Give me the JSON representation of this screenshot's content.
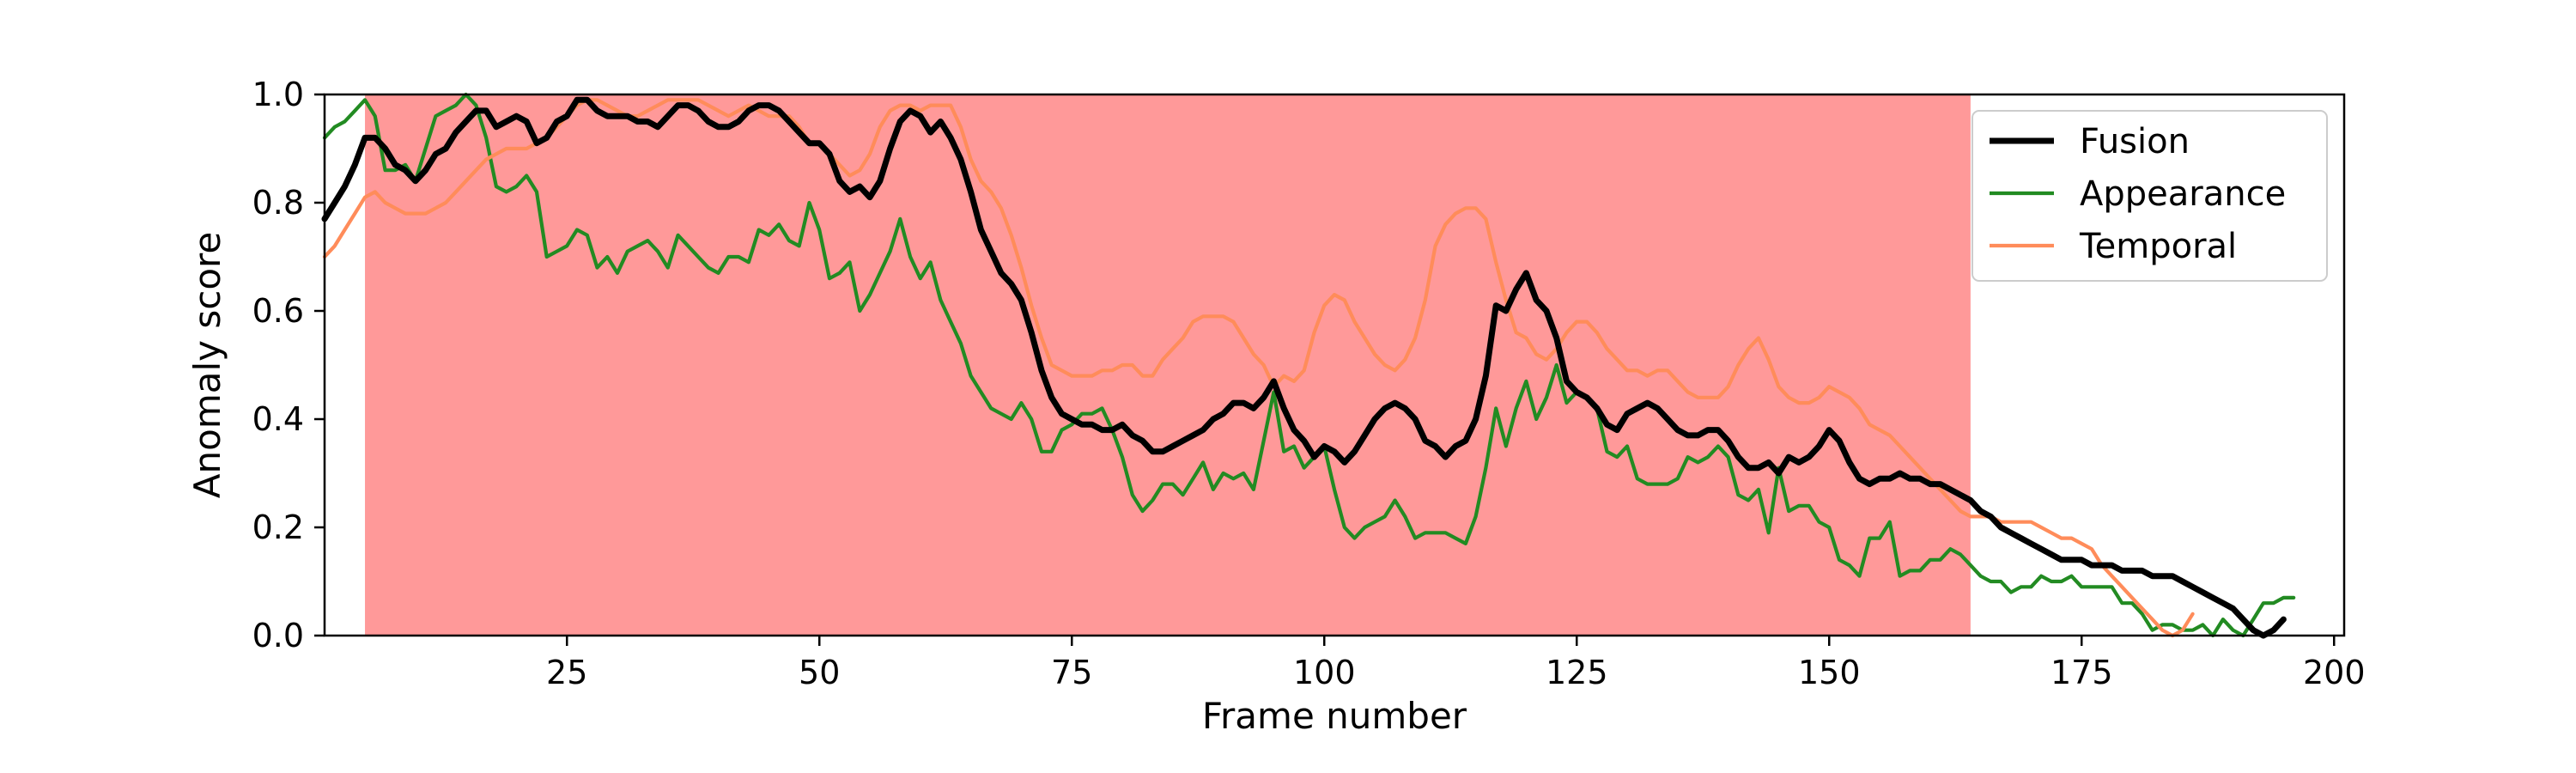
{
  "chart_data": {
    "type": "line",
    "title": "",
    "xlabel": "Frame number",
    "ylabel": "Anomaly score",
    "xlim": [
      1,
      201
    ],
    "ylim": [
      0.0,
      1.0
    ],
    "xticks": [
      25,
      50,
      75,
      100,
      125,
      150,
      175,
      200
    ],
    "yticks": [
      0.0,
      0.2,
      0.4,
      0.6,
      0.8,
      1.0
    ],
    "xtick_labels": [
      "25",
      "50",
      "75",
      "100",
      "125",
      "150",
      "175",
      "200"
    ],
    "ytick_labels": [
      "0.0",
      "0.2",
      "0.4",
      "0.6",
      "0.8",
      "1.0"
    ],
    "grid": false,
    "legend_position": "top-right",
    "shaded_region": {
      "x_start": 5,
      "x_end": 164,
      "color": "#ff9999"
    },
    "x_start": 1,
    "series": [
      {
        "name": "Fusion",
        "color": "#000000",
        "values": [
          0.77,
          0.8,
          0.83,
          0.87,
          0.92,
          0.92,
          0.9,
          0.87,
          0.86,
          0.84,
          0.86,
          0.89,
          0.9,
          0.93,
          0.95,
          0.97,
          0.97,
          0.94,
          0.95,
          0.96,
          0.95,
          0.91,
          0.92,
          0.95,
          0.96,
          0.99,
          0.99,
          0.97,
          0.96,
          0.96,
          0.96,
          0.95,
          0.95,
          0.94,
          0.96,
          0.98,
          0.98,
          0.97,
          0.95,
          0.94,
          0.94,
          0.95,
          0.97,
          0.98,
          0.98,
          0.97,
          0.95,
          0.93,
          0.91,
          0.91,
          0.89,
          0.84,
          0.82,
          0.83,
          0.81,
          0.84,
          0.9,
          0.95,
          0.97,
          0.96,
          0.93,
          0.95,
          0.92,
          0.88,
          0.82,
          0.75,
          0.71,
          0.67,
          0.65,
          0.62,
          0.56,
          0.49,
          0.44,
          0.41,
          0.4,
          0.39,
          0.39,
          0.38,
          0.38,
          0.39,
          0.37,
          0.36,
          0.34,
          0.34,
          0.35,
          0.36,
          0.37,
          0.38,
          0.4,
          0.41,
          0.43,
          0.43,
          0.42,
          0.44,
          0.47,
          0.42,
          0.38,
          0.36,
          0.33,
          0.35,
          0.34,
          0.32,
          0.34,
          0.37,
          0.4,
          0.42,
          0.43,
          0.42,
          0.4,
          0.36,
          0.35,
          0.33,
          0.35,
          0.36,
          0.4,
          0.48,
          0.61,
          0.6,
          0.64,
          0.67,
          0.62,
          0.6,
          0.55,
          0.47,
          0.45,
          0.44,
          0.42,
          0.39,
          0.38,
          0.41,
          0.42,
          0.43,
          0.42,
          0.4,
          0.38,
          0.37,
          0.37,
          0.38,
          0.38,
          0.36,
          0.33,
          0.31,
          0.31,
          0.32,
          0.3,
          0.33,
          0.32,
          0.33,
          0.35,
          0.38,
          0.36,
          0.32,
          0.29,
          0.28,
          0.29,
          0.29,
          0.3,
          0.29,
          0.29,
          0.28,
          0.28,
          0.27,
          0.26,
          0.25,
          0.23,
          0.22,
          0.2,
          0.19,
          0.18,
          0.17,
          0.16,
          0.15,
          0.14,
          0.14,
          0.14,
          0.13,
          0.13,
          0.13,
          0.12,
          0.12,
          0.12,
          0.11,
          0.11,
          0.11,
          0.1,
          0.09,
          0.08,
          0.07,
          0.06,
          0.05,
          0.03,
          0.01,
          0.0,
          0.01,
          0.03
        ]
      },
      {
        "name": "Appearance",
        "color": "#228b22",
        "values": [
          0.92,
          0.94,
          0.95,
          0.97,
          0.99,
          0.96,
          0.86,
          0.86,
          0.87,
          0.84,
          0.9,
          0.96,
          0.97,
          0.98,
          1.0,
          0.98,
          0.92,
          0.83,
          0.82,
          0.83,
          0.85,
          0.82,
          0.7,
          0.71,
          0.72,
          0.75,
          0.74,
          0.68,
          0.7,
          0.67,
          0.71,
          0.72,
          0.73,
          0.71,
          0.68,
          0.74,
          0.72,
          0.7,
          0.68,
          0.67,
          0.7,
          0.7,
          0.69,
          0.75,
          0.74,
          0.76,
          0.73,
          0.72,
          0.8,
          0.75,
          0.66,
          0.67,
          0.69,
          0.6,
          0.63,
          0.67,
          0.71,
          0.77,
          0.7,
          0.66,
          0.69,
          0.62,
          0.58,
          0.54,
          0.48,
          0.45,
          0.42,
          0.41,
          0.4,
          0.43,
          0.4,
          0.34,
          0.34,
          0.38,
          0.39,
          0.41,
          0.41,
          0.42,
          0.38,
          0.33,
          0.26,
          0.23,
          0.25,
          0.28,
          0.28,
          0.26,
          0.29,
          0.32,
          0.27,
          0.3,
          0.29,
          0.3,
          0.27,
          0.36,
          0.45,
          0.34,
          0.35,
          0.31,
          0.33,
          0.35,
          0.27,
          0.2,
          0.18,
          0.2,
          0.21,
          0.22,
          0.25,
          0.22,
          0.18,
          0.19,
          0.19,
          0.19,
          0.18,
          0.17,
          0.22,
          0.31,
          0.42,
          0.35,
          0.42,
          0.47,
          0.4,
          0.44,
          0.5,
          0.43,
          0.45,
          0.44,
          0.42,
          0.34,
          0.33,
          0.35,
          0.29,
          0.28,
          0.28,
          0.28,
          0.29,
          0.33,
          0.32,
          0.33,
          0.35,
          0.33,
          0.26,
          0.25,
          0.27,
          0.19,
          0.31,
          0.23,
          0.24,
          0.24,
          0.21,
          0.2,
          0.14,
          0.13,
          0.11,
          0.18,
          0.18,
          0.21,
          0.11,
          0.12,
          0.12,
          0.14,
          0.14,
          0.16,
          0.15,
          0.13,
          0.11,
          0.1,
          0.1,
          0.08,
          0.09,
          0.09,
          0.11,
          0.1,
          0.1,
          0.11,
          0.09,
          0.09,
          0.09,
          0.09,
          0.06,
          0.06,
          0.04,
          0.01,
          0.02,
          0.02,
          0.01,
          0.01,
          0.02,
          0.0,
          0.03,
          0.01,
          0.0,
          0.03,
          0.06,
          0.06,
          0.07,
          0.07
        ]
      },
      {
        "name": "Temporal",
        "color": "#ff8c5a",
        "values": [
          0.7,
          0.72,
          0.75,
          0.78,
          0.81,
          0.82,
          0.8,
          0.79,
          0.78,
          0.78,
          0.78,
          0.79,
          0.8,
          0.82,
          0.84,
          0.86,
          0.88,
          0.89,
          0.9,
          0.9,
          0.9,
          0.91,
          0.92,
          0.94,
          0.96,
          0.98,
          0.99,
          0.99,
          0.98,
          0.97,
          0.96,
          0.96,
          0.97,
          0.98,
          0.99,
          0.99,
          0.99,
          0.99,
          0.98,
          0.97,
          0.96,
          0.97,
          0.98,
          0.97,
          0.96,
          0.96,
          0.96,
          0.94,
          0.91,
          0.91,
          0.89,
          0.87,
          0.85,
          0.86,
          0.89,
          0.94,
          0.97,
          0.98,
          0.98,
          0.97,
          0.98,
          0.98,
          0.98,
          0.94,
          0.88,
          0.84,
          0.82,
          0.79,
          0.74,
          0.68,
          0.61,
          0.55,
          0.5,
          0.49,
          0.48,
          0.48,
          0.48,
          0.49,
          0.49,
          0.5,
          0.5,
          0.48,
          0.48,
          0.51,
          0.53,
          0.55,
          0.58,
          0.59,
          0.59,
          0.59,
          0.58,
          0.55,
          0.52,
          0.5,
          0.46,
          0.48,
          0.47,
          0.49,
          0.56,
          0.61,
          0.63,
          0.62,
          0.58,
          0.55,
          0.52,
          0.5,
          0.49,
          0.51,
          0.55,
          0.62,
          0.72,
          0.76,
          0.78,
          0.79,
          0.79,
          0.77,
          0.69,
          0.62,
          0.56,
          0.55,
          0.52,
          0.51,
          0.53,
          0.56,
          0.58,
          0.58,
          0.56,
          0.53,
          0.51,
          0.49,
          0.49,
          0.48,
          0.49,
          0.49,
          0.47,
          0.45,
          0.44,
          0.44,
          0.44,
          0.46,
          0.5,
          0.53,
          0.55,
          0.51,
          0.46,
          0.44,
          0.43,
          0.43,
          0.44,
          0.46,
          0.45,
          0.44,
          0.42,
          0.39,
          0.38,
          0.37,
          0.35,
          0.33,
          0.31,
          0.29,
          0.27,
          0.25,
          0.23,
          0.22,
          0.22,
          0.22,
          0.21,
          0.21,
          0.21,
          0.21,
          0.2,
          0.19,
          0.18,
          0.18,
          0.17,
          0.16,
          0.13,
          0.11,
          0.09,
          0.07,
          0.05,
          0.03,
          0.01,
          0.0,
          0.01,
          0.04
        ]
      }
    ]
  }
}
